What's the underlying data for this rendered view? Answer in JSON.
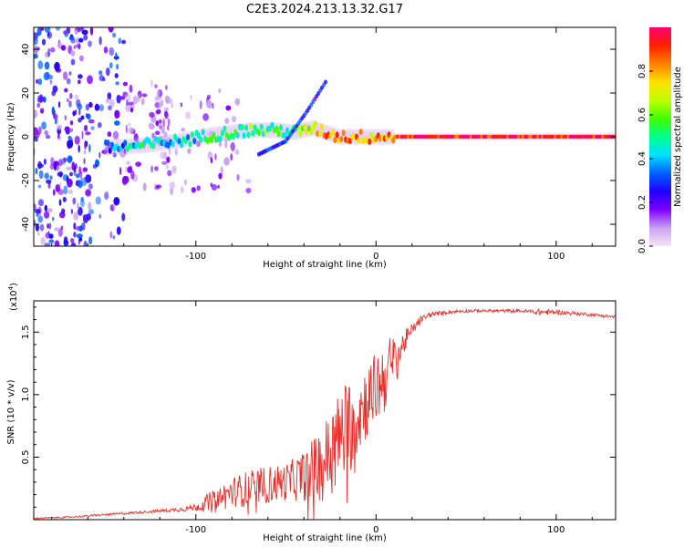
{
  "title": "C2E3.2024.213.13.32.G17",
  "chart_data": [
    {
      "type": "heatmap",
      "xlabel": "Height of straight line (km)",
      "ylabel": "Frequency (Hz)",
      "xlim": [
        -190,
        133
      ],
      "ylim": [
        -50,
        50
      ],
      "xticks": [
        -100,
        0,
        100
      ],
      "yticks": [
        -40,
        -20,
        0,
        20,
        40
      ],
      "colorbar": {
        "label": "Normalized spectral amplitude",
        "ticks": [
          0.0,
          0.2,
          0.4,
          0.6,
          0.8
        ],
        "range": [
          0,
          1
        ],
        "colors": [
          "#f6e4f6",
          "#c8a2f0",
          "#7e00ff",
          "#2000ff",
          "#0060ff",
          "#00e0ff",
          "#00ff90",
          "#40ff00",
          "#c0ff00",
          "#ffe000",
          "#ff8000",
          "#ff2000",
          "#ff0070"
        ]
      },
      "trace": {
        "x": [
          -150,
          -130,
          -110,
          -90,
          -70,
          -55,
          -45,
          -35,
          -28,
          -20,
          -10,
          0,
          10,
          30,
          60,
          90,
          110,
          133
        ],
        "frequency": [
          -5,
          -4,
          -2,
          1,
          3,
          3,
          2,
          4,
          2,
          0,
          0,
          0,
          0,
          0,
          0,
          0,
          0,
          0
        ],
        "amplitude": [
          0.35,
          0.45,
          0.4,
          0.5,
          0.55,
          0.5,
          0.55,
          0.7,
          0.8,
          0.85,
          0.8,
          0.8,
          0.85,
          0.95,
          0.95,
          0.9,
          0.95,
          0.95
        ]
      },
      "branch": {
        "x": [
          -65,
          -50,
          -38,
          -28
        ],
        "frequency": [
          -8,
          -2,
          12,
          25
        ]
      }
    },
    {
      "type": "line",
      "xlabel": "Height of straight line (km)",
      "ylabel": "SNR (10 * v/v)",
      "scale_label": "(x10",
      "scale_exponent": "4",
      "scale_close": ")",
      "xlim": [
        -190,
        133
      ],
      "ylim": [
        0,
        1.75
      ],
      "xticks": [
        -100,
        0,
        100
      ],
      "yticks": [
        0.5,
        1.0,
        1.5
      ],
      "series": [
        {
          "color": "#e8302a",
          "x": [
            -190,
            -170,
            -150,
            -130,
            -110,
            -100,
            -90,
            -80,
            -70,
            -60,
            -50,
            -40,
            -35,
            -30,
            -25,
            -20,
            -15,
            -10,
            -5,
            0,
            5,
            10,
            15,
            20,
            25,
            30,
            40,
            50,
            60,
            70,
            80,
            90,
            100,
            110,
            120,
            133
          ],
          "y": [
            0.01,
            0.02,
            0.04,
            0.06,
            0.08,
            0.1,
            0.15,
            0.22,
            0.25,
            0.28,
            0.3,
            0.35,
            0.4,
            0.45,
            0.55,
            0.65,
            0.75,
            0.85,
            0.95,
            1.05,
            1.15,
            1.25,
            1.4,
            1.52,
            1.6,
            1.64,
            1.66,
            1.67,
            1.67,
            1.67,
            1.67,
            1.66,
            1.66,
            1.65,
            1.64,
            1.62
          ],
          "noise": [
            0.005,
            0.006,
            0.008,
            0.01,
            0.015,
            0.03,
            0.1,
            0.12,
            0.15,
            0.15,
            0.15,
            0.2,
            0.25,
            0.3,
            0.35,
            0.4,
            0.4,
            0.35,
            0.3,
            0.3,
            0.3,
            0.25,
            0.1,
            0.05,
            0.03,
            0.02,
            0.015,
            0.012,
            0.012,
            0.012,
            0.012,
            0.025,
            0.02,
            0.015,
            0.012,
            0.012
          ]
        }
      ]
    }
  ]
}
